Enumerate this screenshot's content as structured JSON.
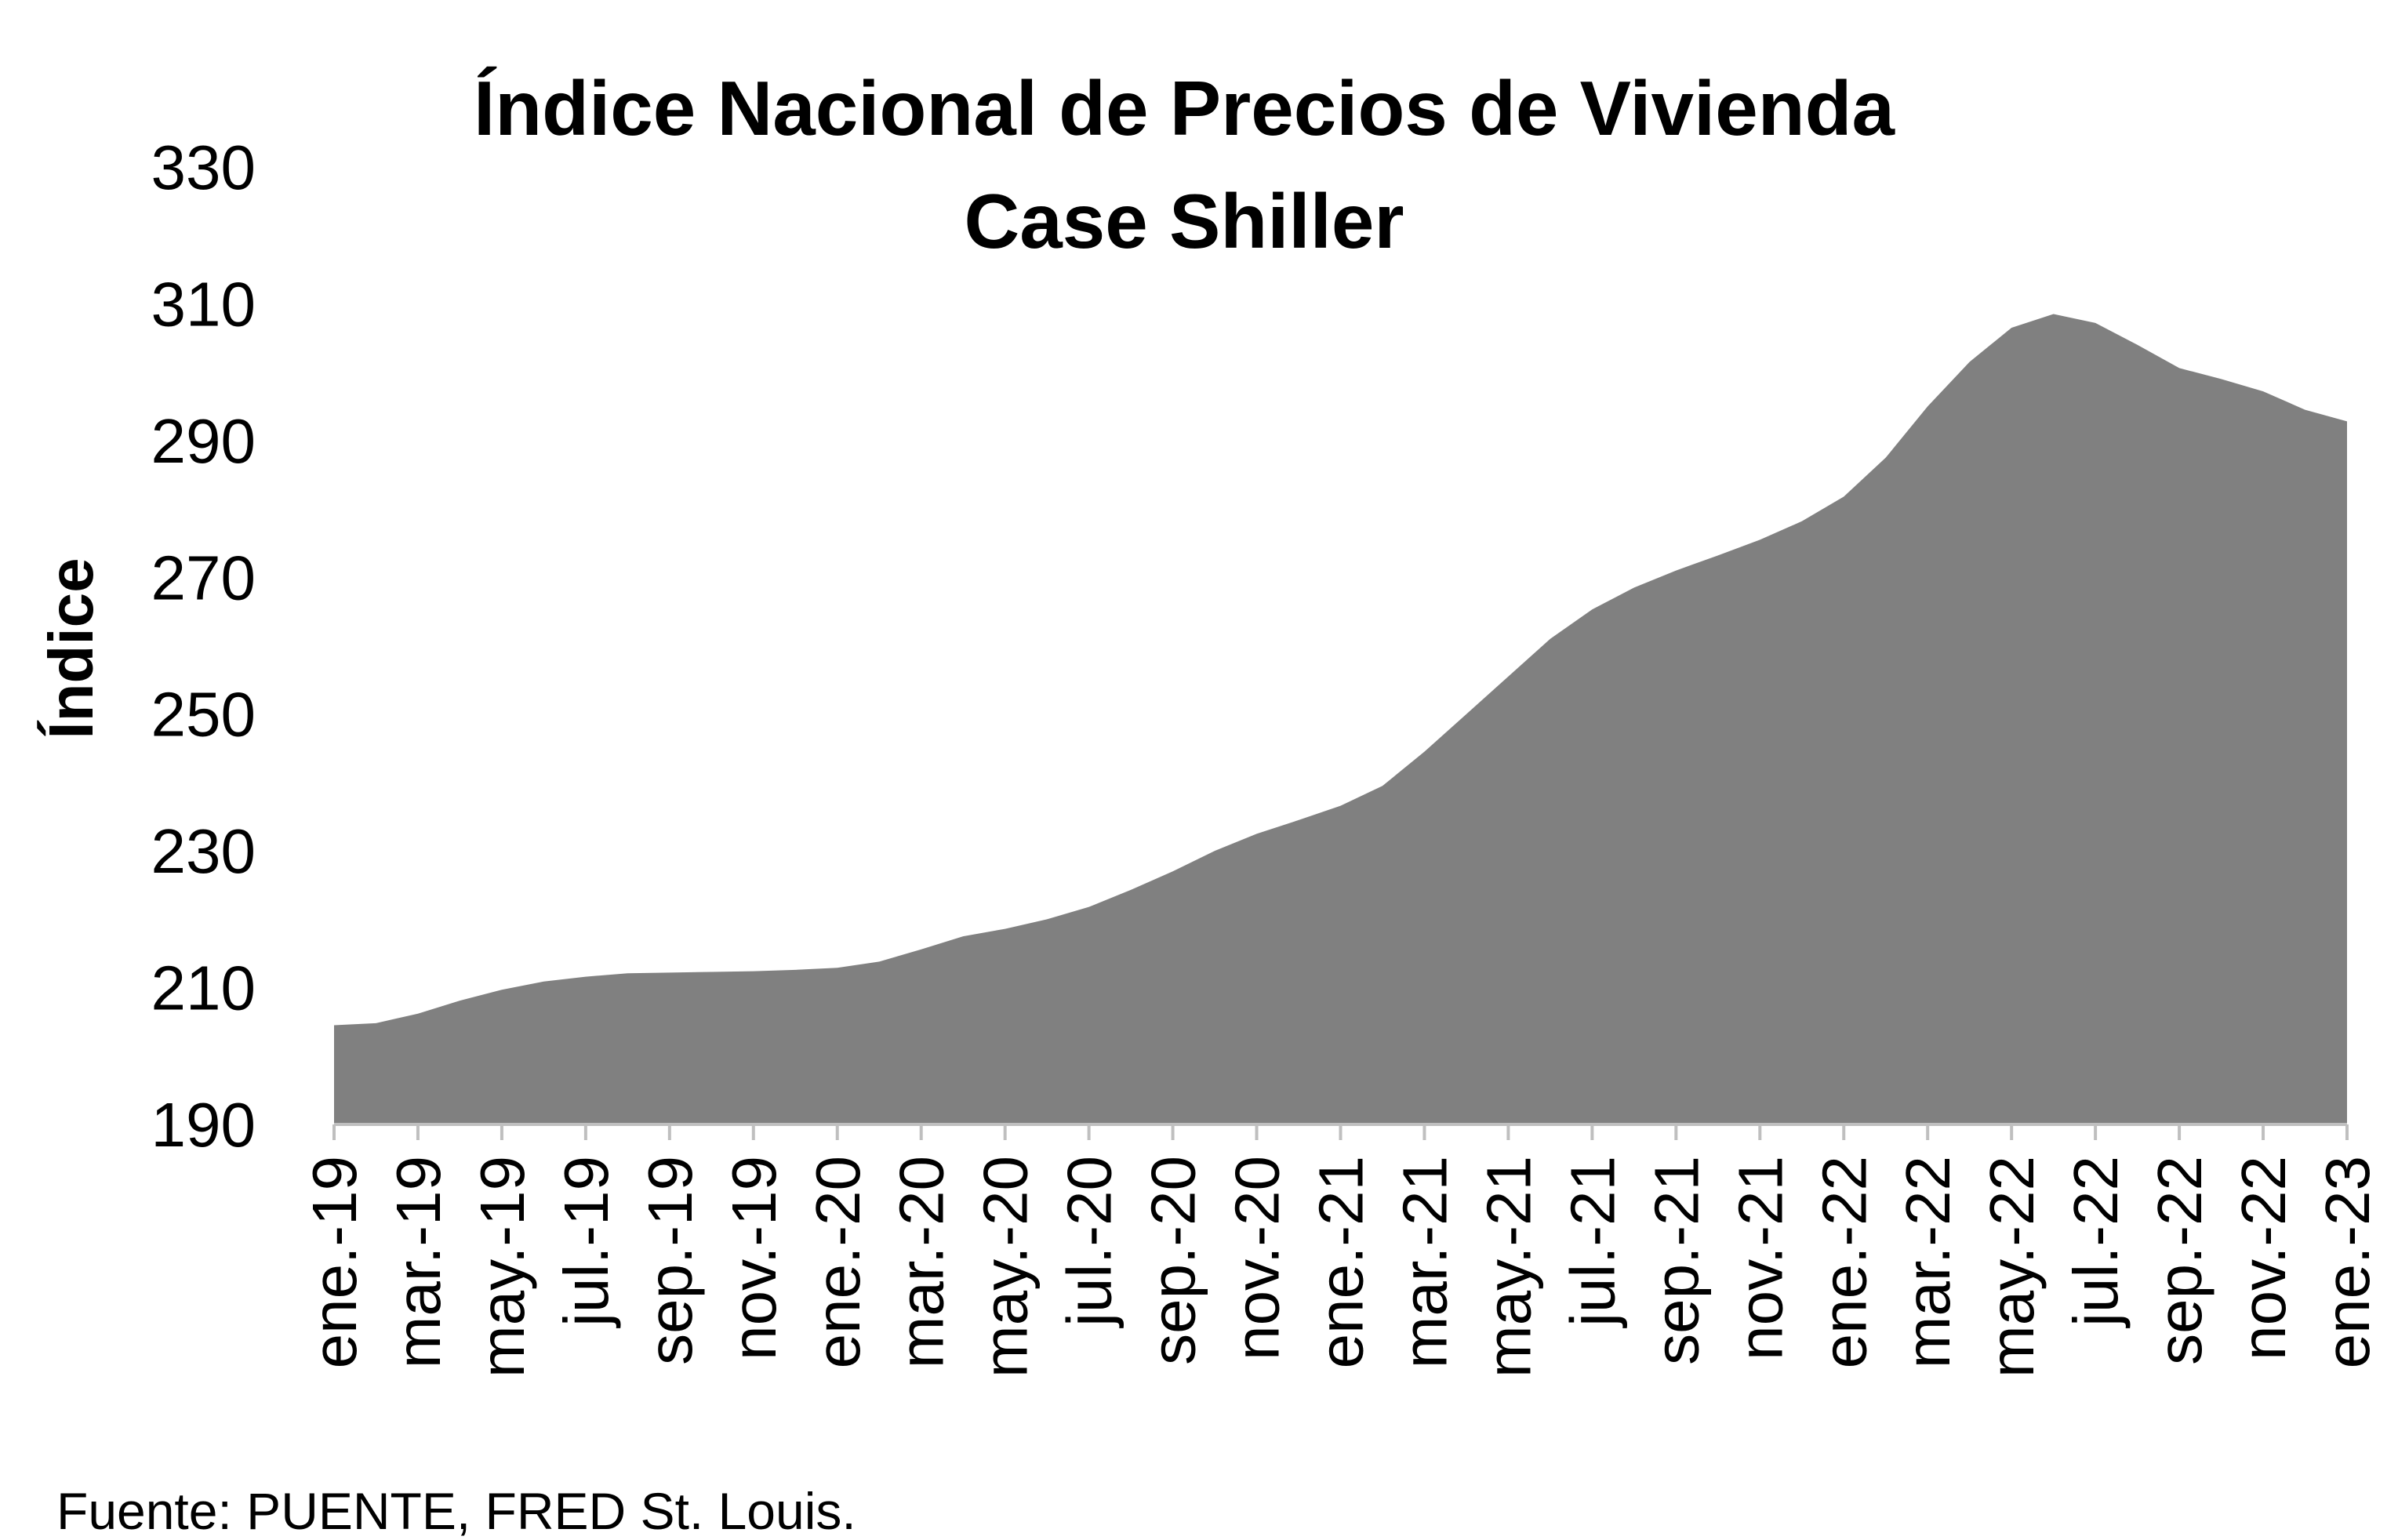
{
  "chart_data": {
    "type": "area",
    "title": "Índice Nacional de Precios de Vivienda",
    "subtitle": "Case Shiller",
    "ylabel": "Índice",
    "source": {
      "label": "Fuente:",
      "text": "PUENTE, FRED St. Louis."
    },
    "categories": [
      "ene.-19",
      null,
      "mar.-19",
      null,
      "may.-19",
      null,
      "jul.-19",
      null,
      "sep.-19",
      null,
      "nov.-19",
      null,
      "ene.-20",
      null,
      "mar.-20",
      null,
      "may.-20",
      null,
      "jul.-20",
      null,
      "sep.-20",
      null,
      "nov.-20",
      null,
      "ene.-21",
      null,
      "mar.-21",
      null,
      "may.-21",
      null,
      "jul.-21",
      null,
      "sep.-21",
      null,
      "nov.-21",
      null,
      "ene.-22",
      null,
      "mar.-22",
      null,
      "may.-22",
      null,
      "jul.-22",
      null,
      "sep.-22",
      null,
      "nov.-22",
      null,
      "ene.-23"
    ],
    "values": [
      204.5,
      204.8,
      206.2,
      208.1,
      209.7,
      210.9,
      211.6,
      212.1,
      212.2,
      212.3,
      212.4,
      212.6,
      212.9,
      213.8,
      215.6,
      217.5,
      218.6,
      220.0,
      221.8,
      224.3,
      227.0,
      230.0,
      232.5,
      234.5,
      236.6,
      239.5,
      244.5,
      250.0,
      255.5,
      261.0,
      265.3,
      268.5,
      271.0,
      273.2,
      275.5,
      278.2,
      281.8,
      287.5,
      295.0,
      301.5,
      306.5,
      308.5,
      307.2,
      304.0,
      300.6,
      299.0,
      297.2,
      294.5,
      292.8
    ],
    "color": "#808080",
    "ylim": [
      190,
      330
    ],
    "yticks": [
      190,
      210,
      230,
      250,
      270,
      290,
      310,
      330
    ],
    "grid": false
  }
}
